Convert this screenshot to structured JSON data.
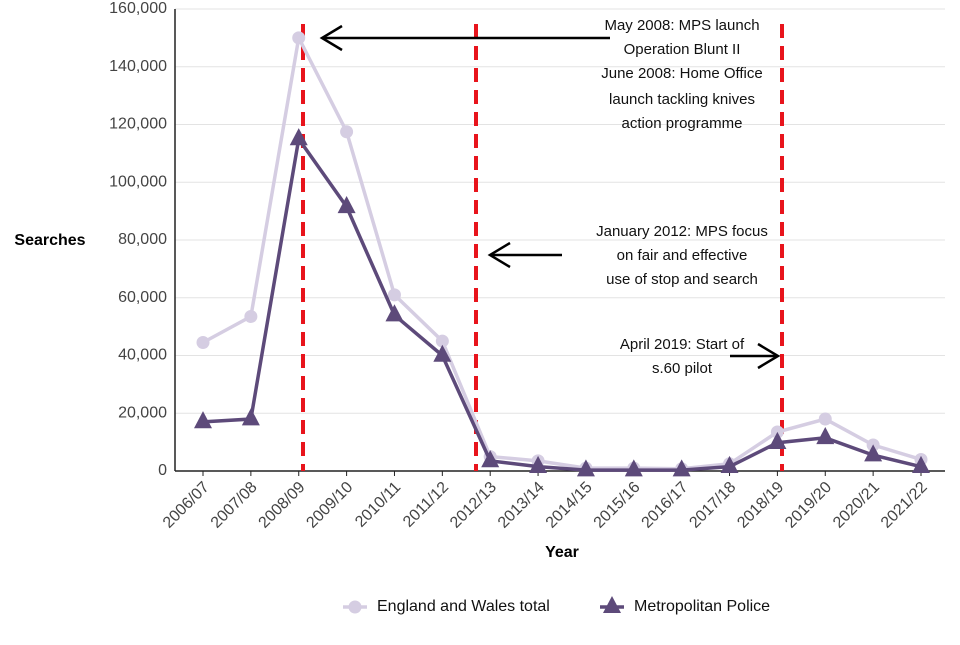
{
  "chart_data": {
    "type": "line",
    "x_label": "Year",
    "y_label": "Searches",
    "categories": [
      "2006/07",
      "2007/08",
      "2008/09",
      "2009/10",
      "2010/11",
      "2011/12",
      "2012/13",
      "2013/14",
      "2014/15",
      "2015/16",
      "2016/17",
      "2017/18",
      "2018/19",
      "2019/20",
      "2020/21",
      "2021/22"
    ],
    "series": [
      {
        "name": "England and Wales total",
        "color": "#d5cde2",
        "marker": "circle",
        "values": [
          44500,
          53500,
          150000,
          117500,
          61000,
          45000,
          5000,
          3500,
          1000,
          1000,
          800,
          2500,
          13500,
          18000,
          9000,
          4000
        ]
      },
      {
        "name": "Metropolitan Police",
        "color": "#5d4a7a",
        "marker": "triangle",
        "values": [
          17000,
          18000,
          115000,
          91500,
          54000,
          40000,
          3500,
          1500,
          300,
          300,
          300,
          1500,
          9800,
          11500,
          5500,
          1500
        ]
      }
    ],
    "ylim": [
      0,
      160000
    ],
    "yticks": [
      0,
      {
        "value": 20000,
        "label": "20,000"
      },
      {
        "value": 40000,
        "label": "40,000"
      },
      {
        "value": 60000,
        "label": "60,000"
      },
      {
        "value": 80000,
        "label": "80,000"
      },
      {
        "value": 100000,
        "label": "100,000"
      },
      {
        "value": 120000,
        "label": "120,000"
      },
      {
        "value": 140000,
        "label": "140,000"
      },
      {
        "value": 160000,
        "label": "160,000"
      }
    ],
    "grid": true,
    "legend": "bottom",
    "annotations": [
      {
        "lines": [
          "May 2008: MPS launch",
          "Operation Blunt II",
          "June 2008: Home Office",
          "launch tackling knives",
          "action programme"
        ]
      },
      {
        "lines": [
          "January 2012: MPS focus",
          "on fair and effective",
          "use of stop and search"
        ]
      },
      {
        "lines": [
          "April 2019: Start of",
          "s.60 pilot"
        ]
      }
    ]
  }
}
